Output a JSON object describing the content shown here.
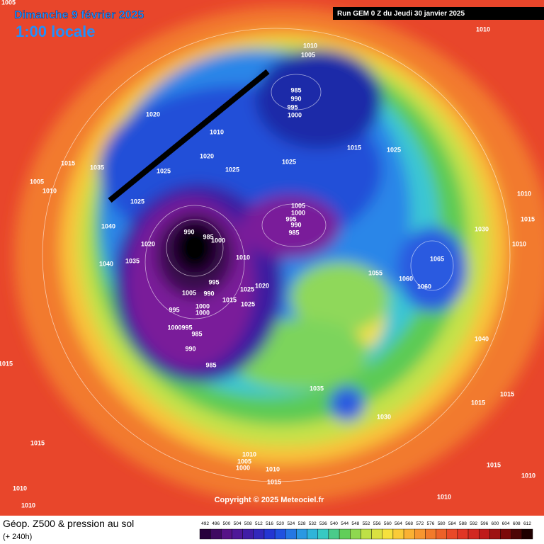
{
  "header": {
    "date": "Dimanche 9 février 2025",
    "time": "1:00 locale",
    "run": "Run GEM 0 Z du Jeudi 30 janvier 2025"
  },
  "map": {
    "pressure_labels": [
      1005,
      1010,
      1005,
      1010,
      985,
      990,
      995,
      1000,
      1020,
      1010,
      1015,
      1025,
      1015,
      1035,
      1020,
      1025,
      1025,
      1025,
      1005,
      1010,
      1010,
      1025,
      1040,
      1005,
      1000,
      995,
      990,
      985,
      1015,
      1030,
      990,
      985,
      1000,
      1020,
      1010,
      1065,
      1010,
      1035,
      1040,
      1055,
      1060,
      1060,
      995,
      1020,
      1025,
      1005,
      990,
      1015,
      1025,
      1000,
      1000,
      995,
      "1000995",
      985,
      990,
      1040,
      985,
      1015,
      1035,
      1015,
      1015,
      1030,
      1015,
      1010,
      1005,
      1000,
      1015,
      1010,
      1015,
      1010,
      1010,
      1010,
      1010
    ],
    "copyright": "Copyright © 2025 Meteociel.fr"
  },
  "footer": {
    "title": "Géop. Z500 & pression au sol",
    "lead": "(+ 240h)",
    "scale": [
      492,
      496,
      500,
      504,
      508,
      512,
      516,
      520,
      524,
      528,
      532,
      536,
      540,
      544,
      548,
      552,
      556,
      560,
      564,
      568,
      572,
      576,
      580,
      584,
      588,
      592,
      596,
      600,
      604,
      608,
      612
    ]
  }
}
